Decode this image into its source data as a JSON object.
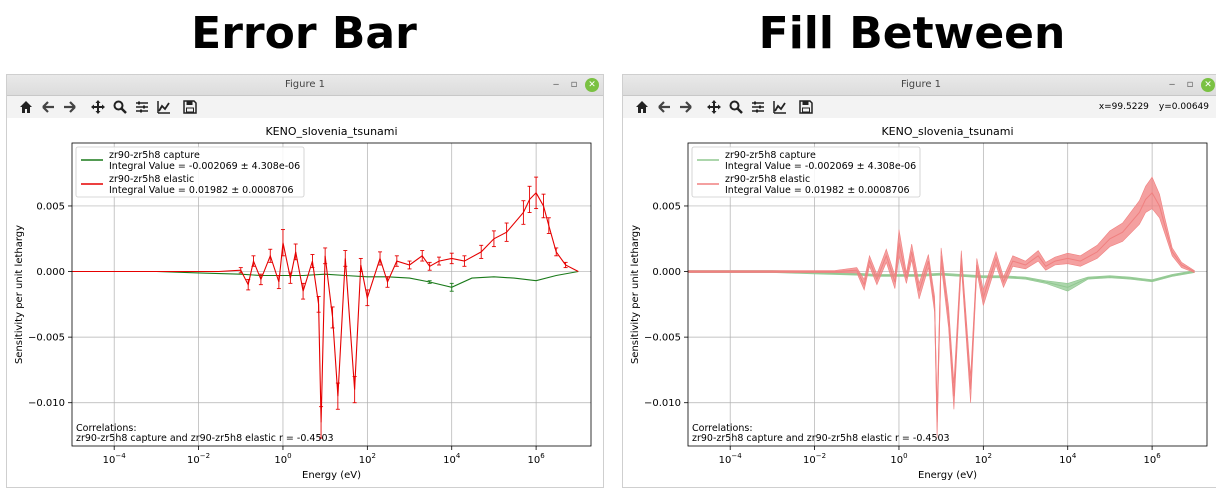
{
  "headings": {
    "left": "Error Bar",
    "right": "Fill Between"
  },
  "window": {
    "title": "Figure 1",
    "buttons": {
      "minimize": "‒",
      "restore": "▫",
      "close": "✕"
    },
    "toolbar_icons": [
      "home-icon",
      "back-arrow-icon",
      "forward-arrow-icon",
      "pan-icon",
      "zoom-icon",
      "subplots-icon",
      "edit-curves-icon",
      "save-icon"
    ],
    "coordinates": {
      "x": "x=99.5229",
      "y": "y=0.00649"
    }
  },
  "colors": {
    "capture": "#1a7a1a",
    "elastic": "#e60000",
    "elastic_fill": "#f08080",
    "capture_fill": "#90c890",
    "grid": "#b0b0b0"
  },
  "chart_data": [
    {
      "type": "line",
      "variant": "errorbar",
      "title": "KENO_slovenia_tsunami",
      "xlabel": "Energy (eV)",
      "ylabel": "Sensitivity per unit lethargy",
      "xscale": "log",
      "xlim": [
        1e-05,
        20000000
      ],
      "ylim": [
        -0.0133,
        0.0098
      ],
      "xticks": [
        {
          "value": 0.0001,
          "base": "10",
          "exp": "−4"
        },
        {
          "value": 0.01,
          "base": "10",
          "exp": "−2"
        },
        {
          "value": 1,
          "base": "10",
          "exp": "0"
        },
        {
          "value": 100,
          "base": "10",
          "exp": "2"
        },
        {
          "value": 10000,
          "base": "10",
          "exp": "4"
        },
        {
          "value": 1000000,
          "base": "10",
          "exp": "6"
        }
      ],
      "yticks": [
        {
          "value": 0.005,
          "label": "0.005"
        },
        {
          "value": 0.0,
          "label": "0.000"
        },
        {
          "value": -0.005,
          "label": "−0.005"
        },
        {
          "value": -0.01,
          "label": "−0.010"
        }
      ],
      "grid": true,
      "legend_position": "upper-left",
      "legend": [
        {
          "name": "zr90-zr5h8 capture",
          "detail": "Integral Value = -0.002069 ± 4.308e-06"
        },
        {
          "name": "zr90-zr5h8 elastic",
          "detail": "Integral Value = 0.01982 ± 0.0008706"
        }
      ],
      "annotation": [
        "Correlations:",
        "zr90-zr5h8 capture and zr90-zr5h8 elastic r = -0.4503"
      ],
      "series": [
        {
          "name": "zr90-zr5h8 capture",
          "x": [
            1e-05,
            0.001,
            0.01,
            0.1,
            0.3,
            1,
            3,
            10,
            30,
            100,
            300,
            1000,
            3000,
            10000,
            30000,
            100000,
            300000,
            1000000,
            3000000,
            10000000
          ],
          "y": [
            0,
            0,
            -0.0001,
            -0.0002,
            -0.0003,
            -0.0003,
            -0.0003,
            -0.0002,
            -0.0003,
            -0.0004,
            -0.0004,
            -0.0005,
            -0.0008,
            -0.0012,
            -0.0005,
            -0.0004,
            -0.0005,
            -0.0007,
            -0.0003,
            0
          ],
          "err": [
            0,
            0,
            0,
            0,
            0,
            0,
            0,
            0,
            0,
            0,
            0,
            0,
            0.0001,
            0.0003,
            0,
            0,
            0,
            0,
            0,
            0
          ]
        },
        {
          "name": "zr90-zr5h8 elastic",
          "x": [
            1e-05,
            0.0001,
            0.001,
            0.01,
            0.03,
            0.1,
            0.15,
            0.2,
            0.3,
            0.5,
            0.8,
            1,
            1.5,
            2,
            3,
            5,
            7,
            8,
            10,
            15,
            20,
            30,
            50,
            70,
            100,
            200,
            300,
            500,
            1000,
            2000,
            3000,
            5000,
            10000,
            20000,
            50000,
            100000,
            200000,
            500000,
            700000,
            1000000,
            1500000,
            2000000,
            3000000,
            5000000,
            10000000
          ],
          "y": [
            0,
            0,
            0,
            0,
            0,
            0.0001,
            -0.001,
            0.0008,
            -0.0006,
            0.0012,
            -0.0008,
            0.0022,
            -0.0005,
            0.0015,
            -0.0015,
            0.0008,
            -0.0025,
            -0.0115,
            0.0012,
            -0.0035,
            -0.0095,
            0.001,
            -0.009,
            0.0005,
            -0.002,
            0.001,
            -0.0008,
            0.0008,
            0.0005,
            0.0012,
            0.0004,
            0.0008,
            0.001,
            0.0008,
            0.0015,
            0.0025,
            0.003,
            0.0045,
            0.0055,
            0.006,
            0.005,
            0.0035,
            0.0015,
            0.0005,
            0
          ],
          "err": [
            0,
            0,
            0,
            0,
            0,
            0.0002,
            0.0004,
            0.0004,
            0.0004,
            0.0005,
            0.0005,
            0.001,
            0.0004,
            0.0006,
            0.0006,
            0.0005,
            0.0006,
            0.0012,
            0.0006,
            0.0008,
            0.001,
            0.0006,
            0.001,
            0.0005,
            0.0006,
            0.0005,
            0.0004,
            0.0004,
            0.0003,
            0.0004,
            0.0003,
            0.0003,
            0.0004,
            0.0004,
            0.0005,
            0.0006,
            0.0007,
            0.0009,
            0.001,
            0.0012,
            0.0009,
            0.0006,
            0.0003,
            0.0002,
            0
          ]
        }
      ]
    },
    {
      "type": "area",
      "variant": "fill_between",
      "title": "KENO_slovenia_tsunami",
      "xlabel": "Energy (eV)",
      "ylabel": "Sensitivity per unit lethargy",
      "xscale": "log",
      "xlim": [
        1e-05,
        20000000
      ],
      "ylim": [
        -0.0133,
        0.0098
      ],
      "xticks": [
        {
          "value": 0.0001,
          "base": "10",
          "exp": "−4"
        },
        {
          "value": 0.01,
          "base": "10",
          "exp": "−2"
        },
        {
          "value": 1,
          "base": "10",
          "exp": "0"
        },
        {
          "value": 100,
          "base": "10",
          "exp": "2"
        },
        {
          "value": 10000,
          "base": "10",
          "exp": "4"
        },
        {
          "value": 1000000,
          "base": "10",
          "exp": "6"
        }
      ],
      "yticks": [
        {
          "value": 0.005,
          "label": "0.005"
        },
        {
          "value": 0.0,
          "label": "0.000"
        },
        {
          "value": -0.005,
          "label": "−0.005"
        },
        {
          "value": -0.01,
          "label": "−0.010"
        }
      ],
      "grid": true,
      "legend_position": "upper-left",
      "legend": [
        {
          "name": "zr90-zr5h8 capture",
          "detail": "Integral Value = -0.002069 ± 4.308e-06"
        },
        {
          "name": "zr90-zr5h8 elastic",
          "detail": "Integral Value = 0.01982 ± 0.0008706"
        }
      ],
      "annotation": [
        "Correlations:",
        "zr90-zr5h8 capture and zr90-zr5h8 elastic r = -0.4503"
      ],
      "series": [
        {
          "name": "zr90-zr5h8 capture",
          "x": [
            1e-05,
            0.001,
            0.01,
            0.1,
            0.3,
            1,
            3,
            10,
            30,
            100,
            300,
            1000,
            3000,
            10000,
            30000,
            100000,
            300000,
            1000000,
            3000000,
            10000000
          ],
          "y": [
            0,
            0,
            -0.0001,
            -0.0002,
            -0.0003,
            -0.0003,
            -0.0003,
            -0.0002,
            -0.0003,
            -0.0004,
            -0.0004,
            -0.0005,
            -0.0008,
            -0.0012,
            -0.0005,
            -0.0004,
            -0.0005,
            -0.0007,
            -0.0003,
            0
          ],
          "err": [
            0,
            0,
            0,
            0,
            0,
            0,
            0,
            0,
            0,
            0,
            0,
            0,
            0.0001,
            0.0003,
            0,
            0,
            0,
            0,
            0,
            0
          ]
        },
        {
          "name": "zr90-zr5h8 elastic",
          "x": [
            1e-05,
            0.0001,
            0.001,
            0.01,
            0.03,
            0.1,
            0.15,
            0.2,
            0.3,
            0.5,
            0.8,
            1,
            1.5,
            2,
            3,
            5,
            7,
            8,
            10,
            15,
            20,
            30,
            50,
            70,
            100,
            200,
            300,
            500,
            1000,
            2000,
            3000,
            5000,
            10000,
            20000,
            50000,
            100000,
            200000,
            500000,
            700000,
            1000000,
            1500000,
            2000000,
            3000000,
            5000000,
            10000000
          ],
          "y": [
            0,
            0,
            0,
            0,
            0,
            0.0001,
            -0.001,
            0.0008,
            -0.0006,
            0.0012,
            -0.0008,
            0.0022,
            -0.0005,
            0.0015,
            -0.0015,
            0.0008,
            -0.0025,
            -0.0115,
            0.0012,
            -0.0035,
            -0.0095,
            0.001,
            -0.009,
            0.0005,
            -0.002,
            0.001,
            -0.0008,
            0.0008,
            0.0005,
            0.0012,
            0.0004,
            0.0008,
            0.001,
            0.0008,
            0.0015,
            0.0025,
            0.003,
            0.0045,
            0.0055,
            0.006,
            0.005,
            0.0035,
            0.0015,
            0.0005,
            0
          ],
          "err": [
            0,
            0,
            0,
            0,
            0,
            0.0002,
            0.0004,
            0.0004,
            0.0004,
            0.0005,
            0.0005,
            0.001,
            0.0004,
            0.0006,
            0.0006,
            0.0005,
            0.0006,
            0.0012,
            0.0006,
            0.0008,
            0.001,
            0.0006,
            0.001,
            0.0005,
            0.0006,
            0.0005,
            0.0004,
            0.0004,
            0.0003,
            0.0004,
            0.0003,
            0.0003,
            0.0004,
            0.0004,
            0.0005,
            0.0006,
            0.0007,
            0.0009,
            0.001,
            0.0012,
            0.0009,
            0.0006,
            0.0003,
            0.0002,
            0
          ]
        }
      ]
    }
  ]
}
